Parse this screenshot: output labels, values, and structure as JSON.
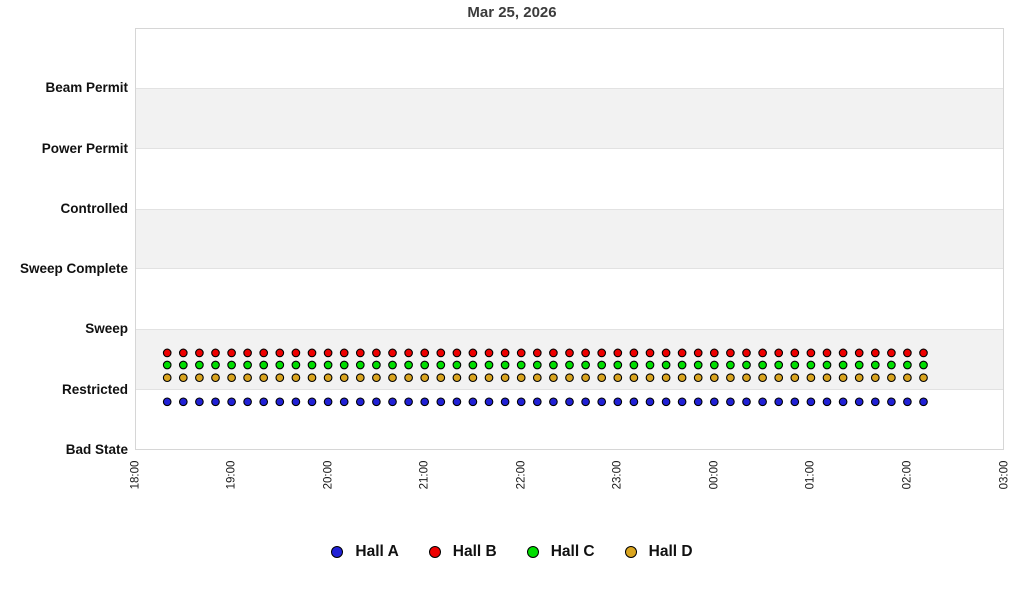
{
  "chart_data": {
    "type": "scatter",
    "title": "Mar 25, 2026",
    "y_categories": [
      "Beam Permit",
      "Power Permit",
      "Controlled",
      "Sweep Complete",
      "Sweep",
      "Restricted",
      "Bad State"
    ],
    "x_ticks": [
      "18:00",
      "19:00",
      "20:00",
      "21:00",
      "22:00",
      "23:00",
      "00:00",
      "01:00",
      "02:00",
      "03:00"
    ],
    "x_axis_span_hours": 9,
    "grid": "alternating-horizontal-bands",
    "band_color": "#f2f2f2",
    "plot_border_color": "#d6d6d6",
    "legend_position": "bottom-center",
    "marker": "circle-black-outline",
    "sample_interval_minutes": 10,
    "x_times": [
      "18:20",
      "18:30",
      "18:40",
      "18:50",
      "19:00",
      "19:10",
      "19:20",
      "19:30",
      "19:40",
      "19:50",
      "20:00",
      "20:10",
      "20:20",
      "20:30",
      "20:40",
      "20:50",
      "21:00",
      "21:10",
      "21:20",
      "21:30",
      "21:40",
      "21:50",
      "22:00",
      "22:10",
      "22:20",
      "22:30",
      "22:40",
      "22:50",
      "23:00",
      "23:10",
      "23:20",
      "23:30",
      "23:40",
      "23:50",
      "00:00",
      "00:10",
      "00:20",
      "00:30",
      "00:40",
      "00:50",
      "01:00",
      "01:10",
      "01:20",
      "01:30",
      "01:40",
      "01:50",
      "02:00",
      "02:10"
    ],
    "series": [
      {
        "name": "Hall A",
        "color": "#2121d6",
        "state_all_samples": "Restricted",
        "display_offset_steps": -0.2
      },
      {
        "name": "Hall B",
        "color": "#ee0000",
        "state_all_samples": "Restricted",
        "display_offset_steps": 0.61
      },
      {
        "name": "Hall C",
        "color": "#00dd00",
        "state_all_samples": "Restricted",
        "display_offset_steps": 0.41
      },
      {
        "name": "Hall D",
        "color": "#daa520",
        "state_all_samples": "Restricted",
        "display_offset_steps": 0.2
      }
    ]
  },
  "colors": {
    "title_text": "#3c3c3c",
    "axis_label_text": "#111111",
    "tick_label_text": "#1a1a1a",
    "marker_outline": "#000000",
    "background": "#ffffff"
  }
}
